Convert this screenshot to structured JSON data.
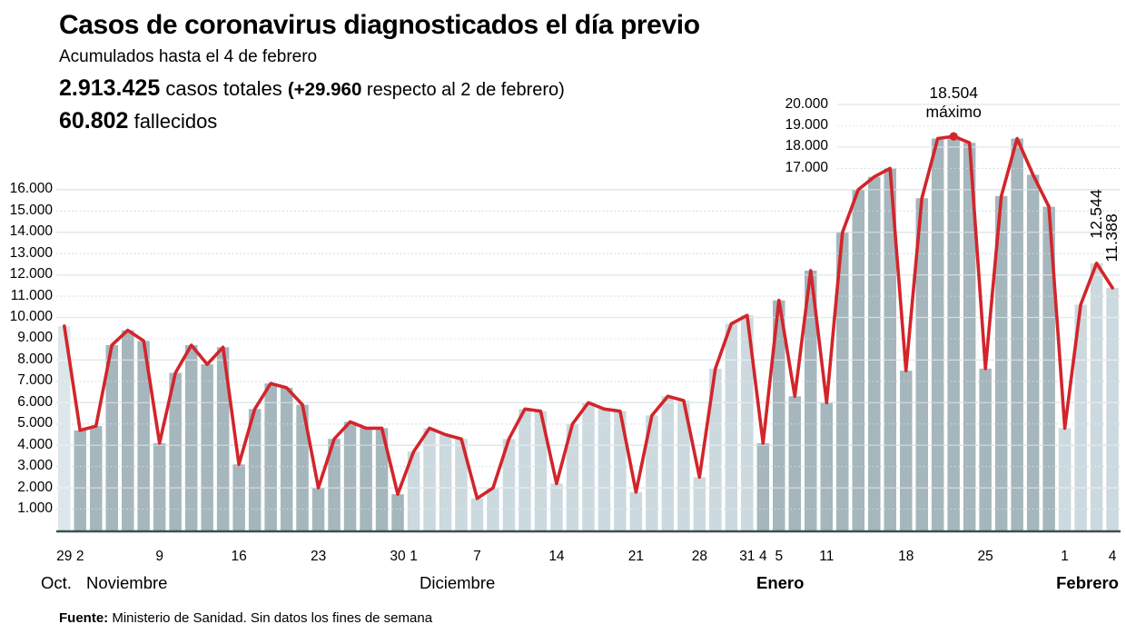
{
  "header": {
    "title": "Casos de coronavirus diagnosticados el día previo",
    "subtitle": "Acumulados hasta el 4 de febrero",
    "stats": {
      "total": "2.913.425",
      "total_label": " casos totales ",
      "delta": "(+29.960",
      "delta_label": " respecto al 2 de febrero)"
    },
    "deaths": {
      "value": "60.802",
      "label": " fallecidos"
    }
  },
  "footer": {
    "source_bold": "Fuente:",
    "source_rest": " Ministerio de Sanidad. Sin datos los fines de semana"
  },
  "chart_data": {
    "type": "bar",
    "title": "Casos de coronavirus diagnosticados el día previo",
    "xlabel": "",
    "ylabel": "",
    "ylim": [
      0,
      20500
    ],
    "grid": "horizontal; solid lines at even thousands, dotted at odd thousands",
    "legend_position": "none",
    "y_ticks_left": [
      "1.000",
      "2.000",
      "3.000",
      "4.000",
      "5.000",
      "6.000",
      "7.000",
      "8.000",
      "9.000",
      "10.000",
      "11.000",
      "12.000",
      "13.000",
      "14.000",
      "15.000",
      "16.000"
    ],
    "y_ticks_upper_right": [
      "17.000",
      "18.000",
      "19.000",
      "20.000"
    ],
    "months": [
      {
        "label": "Oct.",
        "bold": false
      },
      {
        "label": "Noviembre",
        "bold": false
      },
      {
        "label": "Diciembre",
        "bold": false
      },
      {
        "label": "Enero",
        "bold": true
      },
      {
        "label": "Febrero",
        "bold": true
      }
    ],
    "bars": [
      {
        "l": "29",
        "m": "oct",
        "v": 9600
      },
      {
        "l": "2",
        "m": "nov",
        "v": 4700
      },
      {
        "l": "",
        "m": "nov",
        "v": 4900
      },
      {
        "l": "",
        "m": "nov",
        "v": 8700
      },
      {
        "l": "",
        "m": "nov",
        "v": 9400
      },
      {
        "l": "",
        "m": "nov",
        "v": 8900
      },
      {
        "l": "9",
        "m": "nov",
        "v": 4100
      },
      {
        "l": "",
        "m": "nov",
        "v": 7400
      },
      {
        "l": "",
        "m": "nov",
        "v": 8700
      },
      {
        "l": "",
        "m": "nov",
        "v": 7800
      },
      {
        "l": "",
        "m": "nov",
        "v": 8600
      },
      {
        "l": "16",
        "m": "nov",
        "v": 3100
      },
      {
        "l": "",
        "m": "nov",
        "v": 5700
      },
      {
        "l": "",
        "m": "nov",
        "v": 6900
      },
      {
        "l": "",
        "m": "nov",
        "v": 6700
      },
      {
        "l": "",
        "m": "nov",
        "v": 5900
      },
      {
        "l": "23",
        "m": "nov",
        "v": 2000
      },
      {
        "l": "",
        "m": "nov",
        "v": 4300
      },
      {
        "l": "",
        "m": "nov",
        "v": 5100
      },
      {
        "l": "",
        "m": "nov",
        "v": 4800
      },
      {
        "l": "",
        "m": "nov",
        "v": 4800
      },
      {
        "l": "30",
        "m": "nov",
        "v": 1700
      },
      {
        "l": "1",
        "m": "dec",
        "v": 3700
      },
      {
        "l": "",
        "m": "dec",
        "v": 4800
      },
      {
        "l": "",
        "m": "dec",
        "v": 4500
      },
      {
        "l": "",
        "m": "dec",
        "v": 4300
      },
      {
        "l": "7",
        "m": "dec",
        "v": 1500
      },
      {
        "l": "",
        "m": "dec",
        "v": 2000
      },
      {
        "l": "",
        "m": "dec",
        "v": 4300
      },
      {
        "l": "",
        "m": "dec",
        "v": 5700
      },
      {
        "l": "",
        "m": "dec",
        "v": 5600
      },
      {
        "l": "14",
        "m": "dec",
        "v": 2200
      },
      {
        "l": "",
        "m": "dec",
        "v": 5000
      },
      {
        "l": "",
        "m": "dec",
        "v": 6000
      },
      {
        "l": "",
        "m": "dec",
        "v": 5700
      },
      {
        "l": "",
        "m": "dec",
        "v": 5600
      },
      {
        "l": "21",
        "m": "dec",
        "v": 1800
      },
      {
        "l": "",
        "m": "dec",
        "v": 5400
      },
      {
        "l": "",
        "m": "dec",
        "v": 6300
      },
      {
        "l": "",
        "m": "dec",
        "v": 6100
      },
      {
        "l": "28",
        "m": "dec",
        "v": 2500
      },
      {
        "l": "",
        "m": "dec",
        "v": 7600
      },
      {
        "l": "",
        "m": "dec",
        "v": 9700
      },
      {
        "l": "31",
        "m": "dec",
        "v": 10100
      },
      {
        "l": "4",
        "m": "jan",
        "v": 4100
      },
      {
        "l": "5",
        "m": "jan",
        "v": 10800
      },
      {
        "l": "",
        "m": "jan",
        "v": 6300
      },
      {
        "l": "",
        "m": "jan",
        "v": 12200
      },
      {
        "l": "11",
        "m": "jan",
        "v": 6000
      },
      {
        "l": "",
        "m": "jan",
        "v": 14000
      },
      {
        "l": "",
        "m": "jan",
        "v": 16000
      },
      {
        "l": "",
        "m": "jan",
        "v": 16600
      },
      {
        "l": "",
        "m": "jan",
        "v": 17000
      },
      {
        "l": "18",
        "m": "jan",
        "v": 7500
      },
      {
        "l": "",
        "m": "jan",
        "v": 15600
      },
      {
        "l": "",
        "m": "jan",
        "v": 18400
      },
      {
        "l": "",
        "m": "jan",
        "v": 18504
      },
      {
        "l": "",
        "m": "jan",
        "v": 18200
      },
      {
        "l": "25",
        "m": "jan",
        "v": 7600
      },
      {
        "l": "",
        "m": "jan",
        "v": 15700
      },
      {
        "l": "",
        "m": "jan",
        "v": 18400
      },
      {
        "l": "",
        "m": "jan",
        "v": 16700
      },
      {
        "l": "",
        "m": "jan",
        "v": 15200
      },
      {
        "l": "1",
        "m": "feb",
        "v": 4800
      },
      {
        "l": "",
        "m": "feb",
        "v": 10600
      },
      {
        "l": "",
        "m": "feb",
        "v": 12544
      },
      {
        "l": "4",
        "m": "feb",
        "v": 11388
      }
    ],
    "max_annotation": {
      "value": "18.504",
      "caption": "máximo",
      "index": 56
    },
    "side_annotations": [
      {
        "value": "12.544",
        "index": 65
      },
      {
        "value": "11.388",
        "index": 66
      }
    ],
    "colors": {
      "line_red": "#d2252b",
      "bar_oct": "#dce7eb",
      "bar_nov": "#a6b6bd",
      "bar_dec": "#ccd9de",
      "bar_jan": "#a6b6bd",
      "bar_feb": "#ccd9de",
      "grid_solid": "#c6d1d6",
      "grid_dotted": "#aebdc5",
      "axis": "#3f4e56"
    }
  }
}
